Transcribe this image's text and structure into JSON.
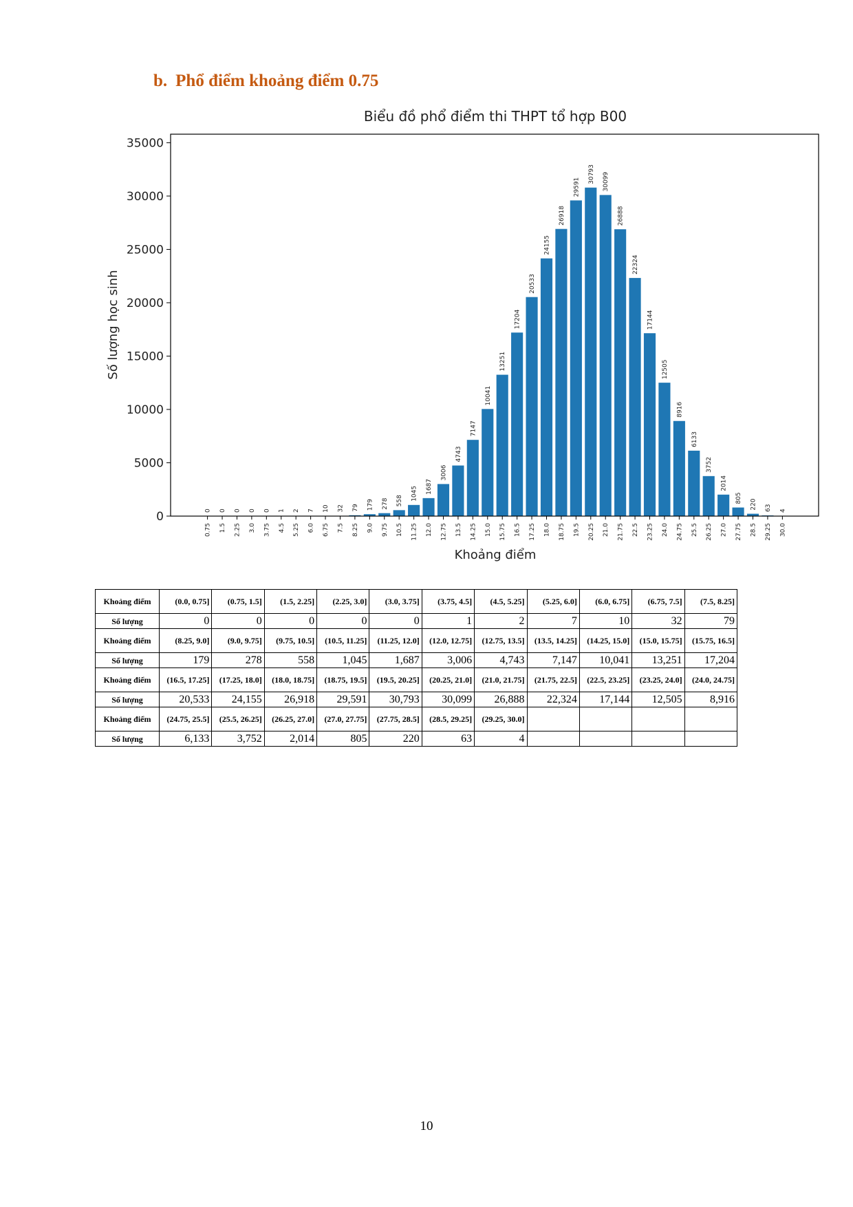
{
  "heading": {
    "marker": "b.",
    "text": "Phổ điểm khoảng điểm 0.75"
  },
  "chart_data": {
    "type": "bar",
    "title": "Biểu đồ phổ điểm thi THPT tổ hợp B00",
    "x_label": "Khoảng điểm",
    "y_label": "Số lượng học sinh",
    "categories": [
      "0.75",
      "1.5",
      "2.25",
      "3.0",
      "3.75",
      "4.5",
      "5.25",
      "6.0",
      "6.75",
      "7.5",
      "8.25",
      "9.0",
      "9.75",
      "10.5",
      "11.25",
      "12.0",
      "12.75",
      "13.5",
      "14.25",
      "15.0",
      "15.75",
      "16.5",
      "17.25",
      "18.0",
      "18.75",
      "19.5",
      "20.25",
      "21.0",
      "21.75",
      "22.5",
      "23.25",
      "24.0",
      "24.75",
      "25.5",
      "26.25",
      "27.0",
      "27.75",
      "28.5",
      "29.25",
      "30.0"
    ],
    "values": [
      0,
      0,
      0,
      0,
      0,
      1,
      2,
      7,
      10,
      32,
      79,
      179,
      278,
      558,
      1045,
      1687,
      3006,
      4743,
      7147,
      10041,
      13251,
      17204,
      20533,
      24155,
      26918,
      29591,
      30793,
      30099,
      26888,
      22324,
      17144,
      12505,
      8916,
      6133,
      3752,
      2014,
      805,
      220,
      63,
      4
    ],
    "color": "#1f77b4",
    "ylim": [
      0,
      35800
    ],
    "yticks": [
      0,
      5000,
      10000,
      15000,
      20000,
      25000,
      30000,
      35000
    ]
  },
  "table": {
    "rows": [
      [
        "Khoảng điểm",
        "(0.0, 0.75]",
        "(0.75, 1.5]",
        "(1.5, 2.25]",
        "(2.25, 3.0]",
        "(3.0, 3.75]",
        "(3.75, 4.5]",
        "(4.5, 5.25]",
        "(5.25, 6.0]",
        "(6.0, 6.75]",
        "(6.75, 7.5]",
        "(7.5, 8.25]"
      ],
      [
        "Số lượng",
        "0",
        "0",
        "0",
        "0",
        "0",
        "1",
        "2",
        "7",
        "10",
        "32",
        "79"
      ],
      [
        "Khoảng điểm",
        "(8.25, 9.0]",
        "(9.0, 9.75]",
        "(9.75, 10.5]",
        "(10.5, 11.25]",
        "(11.25, 12.0]",
        "(12.0, 12.75]",
        "(12.75, 13.5]",
        "(13.5, 14.25]",
        "(14.25, 15.0]",
        "(15.0, 15.75]",
        "(15.75, 16.5]"
      ],
      [
        "Số lượng",
        "179",
        "278",
        "558",
        "1,045",
        "1,687",
        "3,006",
        "4,743",
        "7,147",
        "10,041",
        "13,251",
        "17,204"
      ],
      [
        "Khoảng điểm",
        "(16.5, 17.25]",
        "(17.25, 18.0]",
        "(18.0, 18.75]",
        "(18.75, 19.5]",
        "(19.5, 20.25]",
        "(20.25, 21.0]",
        "(21.0, 21.75]",
        "(21.75, 22.5]",
        "(22.5, 23.25]",
        "(23.25, 24.0]",
        "(24.0, 24.75]"
      ],
      [
        "Số lượng",
        "20,533",
        "24,155",
        "26,918",
        "29,591",
        "30,793",
        "30,099",
        "26,888",
        "22,324",
        "17,144",
        "12,505",
        "8,916"
      ],
      [
        "Khoảng điểm",
        "(24.75, 25.5]",
        "(25.5, 26.25]",
        "(26.25, 27.0]",
        "(27.0, 27.75]",
        "(27.75, 28.5]",
        "(28.5, 29.25]",
        "(29.25, 30.0]"
      ],
      [
        "Số lượng",
        "6,133",
        "3,752",
        "2,014",
        "805",
        "220",
        "63",
        "4"
      ]
    ]
  },
  "page_number": "10"
}
